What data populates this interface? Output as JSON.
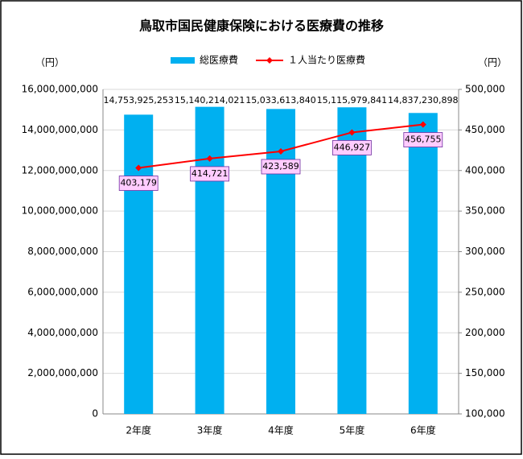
{
  "chart_data": {
    "type": "bar",
    "title": "鳥取市国民健康保険における医療費の推移",
    "y_unit": "（円）",
    "y2_unit": "（円）",
    "categories": [
      "2年度",
      "3年度",
      "4年度",
      "5年度",
      "6年度"
    ],
    "series": [
      {
        "name": "総医療費",
        "type": "bar",
        "color": "#00b0f0",
        "values": [
          14753925253,
          15140214021,
          15033613840,
          15115979841,
          14837230898
        ],
        "value_labels": [
          "14,753,925,253",
          "15,140,214,021",
          "15,033,613,840",
          "15,115,979,841",
          "14,837,230,898"
        ]
      },
      {
        "name": "１人当たり医療費",
        "type": "line",
        "axis": "y2",
        "color": "#ff0000",
        "values": [
          403179,
          414721,
          423589,
          446927,
          456755
        ],
        "value_labels": [
          "403,179",
          "414,721",
          "423,589",
          "446,927",
          "456,755"
        ]
      }
    ],
    "ylim": [
      0,
      16000000000
    ],
    "yticks": [
      0,
      {
        "value": 2000000000,
        "label": "2,000,000,000"
      },
      {
        "value": 4000000000,
        "label": "4,000,000,000"
      },
      {
        "value": 6000000000,
        "label": "6,000,000,000"
      },
      {
        "value": 8000000000,
        "label": "8,000,000,000"
      },
      {
        "value": 10000000000,
        "label": "10,000,000,000"
      },
      {
        "value": 12000000000,
        "label": "12,000,000,000"
      },
      {
        "value": 14000000000,
        "label": "14,000,000,000"
      },
      {
        "value": 16000000000,
        "label": "16,000,000,000"
      }
    ],
    "y2lim": [
      100000,
      500000
    ],
    "y2ticks": [
      {
        "value": 100000,
        "label": "100,000"
      },
      {
        "value": 150000,
        "label": "150,000"
      },
      {
        "value": 200000,
        "label": "200,000"
      },
      {
        "value": 250000,
        "label": "250,000"
      },
      {
        "value": 300000,
        "label": "300,000"
      },
      {
        "value": 350000,
        "label": "350,000"
      },
      {
        "value": 400000,
        "label": "400,000"
      },
      {
        "value": 450000,
        "label": "450,000"
      },
      {
        "value": 500000,
        "label": "500,000"
      }
    ],
    "grid": true
  }
}
